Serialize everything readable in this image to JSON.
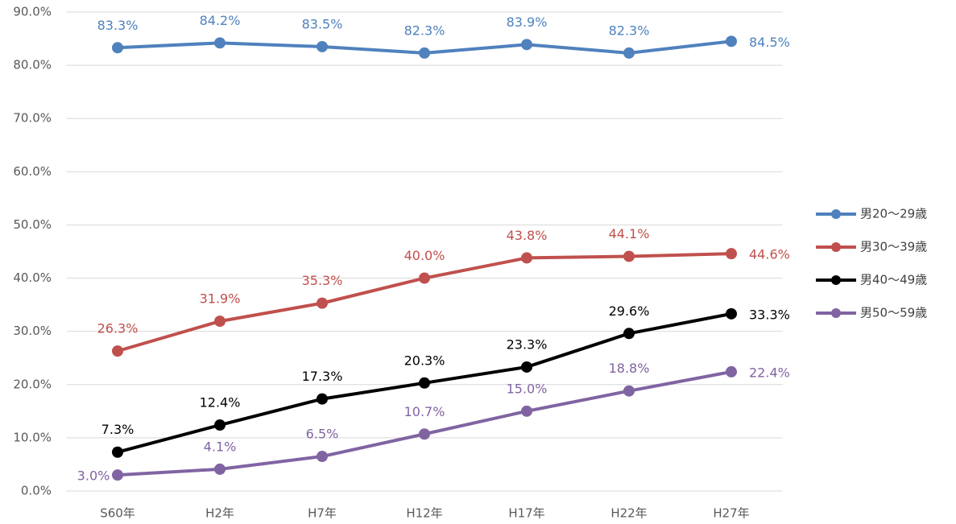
{
  "chart_data": {
    "type": "line",
    "categories": [
      "S60年",
      "H2年",
      "H7年",
      "H12年",
      "H17年",
      "H22年",
      "H27年"
    ],
    "series": [
      {
        "name": "男20〜29歳",
        "color": "#4f81bd",
        "values": [
          83.3,
          84.2,
          83.5,
          82.3,
          83.9,
          82.3,
          84.5
        ],
        "value_labels": [
          "83.3%",
          "84.2%",
          "83.5%",
          "82.3%",
          "83.9%",
          "82.3%",
          "84.5%"
        ]
      },
      {
        "name": "男30〜39歳",
        "color": "#c0504d",
        "values": [
          26.3,
          31.9,
          35.3,
          40.0,
          43.8,
          44.1,
          44.6
        ],
        "value_labels": [
          "26.3%",
          "31.9%",
          "35.3%",
          "40.0%",
          "43.8%",
          "44.1%",
          "44.6%"
        ]
      },
      {
        "name": "男40〜49歳",
        "color": "#000000",
        "values": [
          7.3,
          12.4,
          17.3,
          20.3,
          23.3,
          29.6,
          33.3
        ],
        "value_labels": [
          "7.3%",
          "12.4%",
          "17.3%",
          "20.3%",
          "23.3%",
          "29.6%",
          "33.3%"
        ]
      },
      {
        "name": "男50〜59歳",
        "color": "#8064a2",
        "values": [
          3.0,
          4.1,
          6.5,
          10.7,
          15.0,
          18.8,
          22.4
        ],
        "value_labels": [
          "3.0%",
          "4.1%",
          "6.5%",
          "10.7%",
          "15.0%",
          "18.8%",
          "22.4%"
        ]
      }
    ],
    "ylim": [
      0,
      90
    ],
    "yticks": [
      {
        "value": 0,
        "label": "0.0%"
      },
      {
        "value": 10,
        "label": "10.0%"
      },
      {
        "value": 20,
        "label": "20.0%"
      },
      {
        "value": 30,
        "label": "30.0%"
      },
      {
        "value": 40,
        "label": "40.0%"
      },
      {
        "value": 50,
        "label": "50.0%"
      },
      {
        "value": 60,
        "label": "60.0%"
      },
      {
        "value": 70,
        "label": "70.0%"
      },
      {
        "value": 80,
        "label": "80.0%"
      },
      {
        "value": 90,
        "label": "90.0%"
      }
    ],
    "grid": true,
    "legend": "right"
  }
}
